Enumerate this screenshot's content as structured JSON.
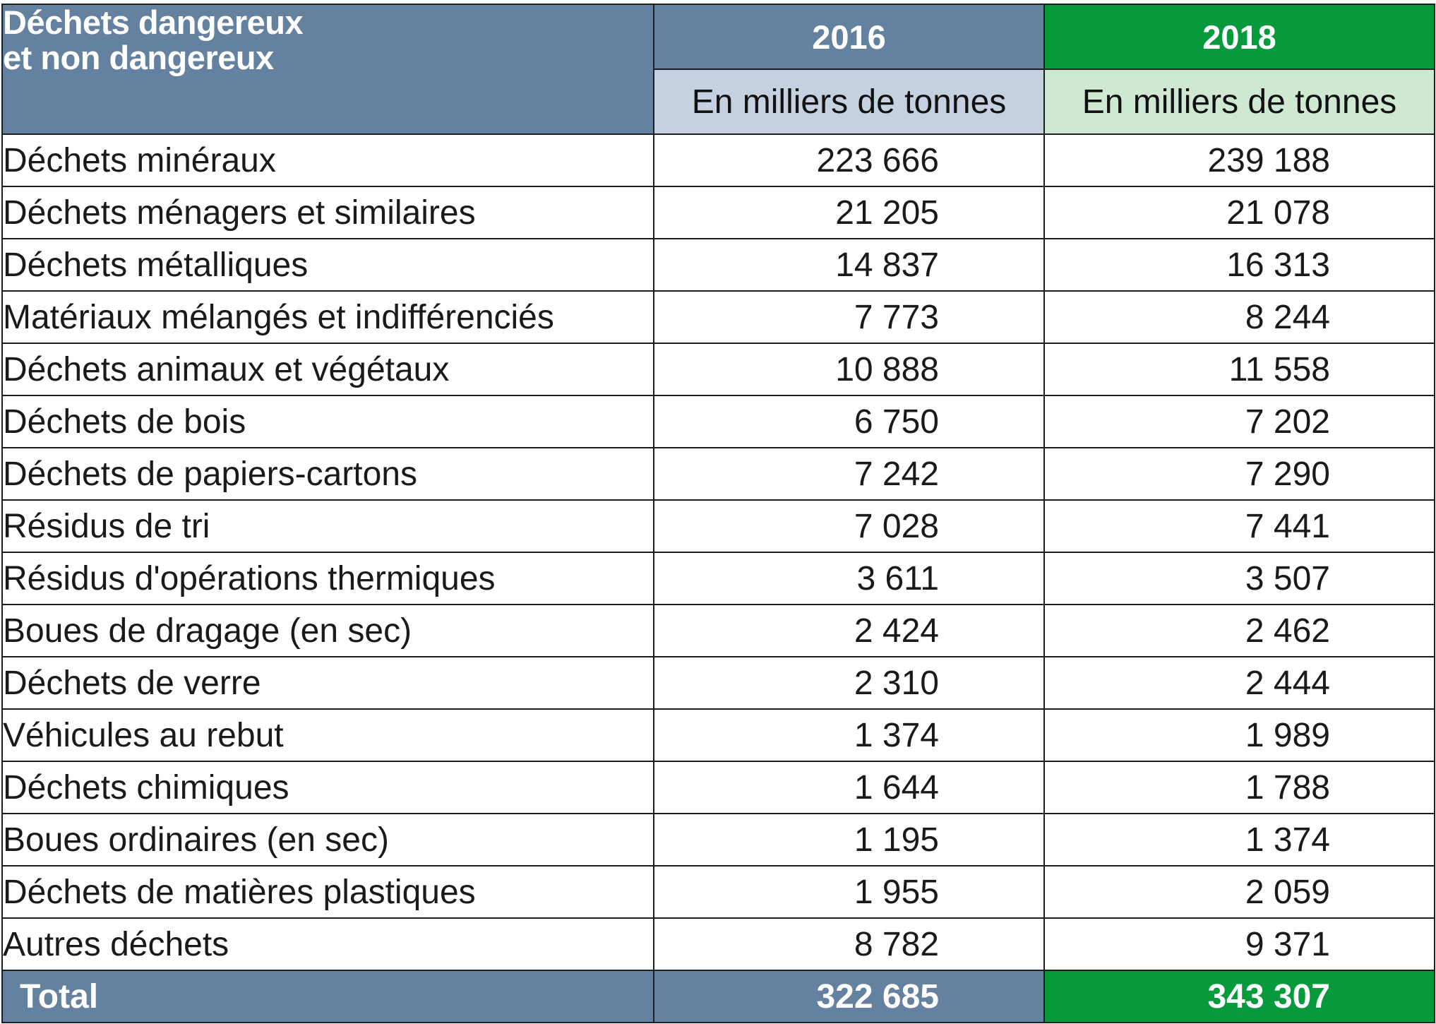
{
  "header": {
    "label_line1": "Déchets dangereux",
    "label_line2": "et non dangereux",
    "year_a": "2016",
    "year_b": "2018",
    "unit_a": "En milliers de tonnes",
    "unit_b": "En milliers de tonnes"
  },
  "rows": [
    {
      "label": "Déchets minéraux",
      "v2016": "223 666",
      "v2018": "239 188"
    },
    {
      "label": "Déchets ménagers et similaires",
      "v2016": "21 205",
      "v2018": "21 078"
    },
    {
      "label": "Déchets métalliques",
      "v2016": "14 837",
      "v2018": "16 313"
    },
    {
      "label": "Matériaux mélangés et indifférenciés",
      "v2016": "7 773",
      "v2018": "8 244"
    },
    {
      "label": "Déchets animaux et végétaux",
      "v2016": "10 888",
      "v2018": "11 558"
    },
    {
      "label": "Déchets de bois",
      "v2016": "6 750",
      "v2018": "7 202"
    },
    {
      "label": "Déchets de papiers-cartons",
      "v2016": "7 242",
      "v2018": "7 290"
    },
    {
      "label": "Résidus de tri",
      "v2016": "7 028",
      "v2018": "7 441"
    },
    {
      "label": "Résidus d'opérations thermiques",
      "v2016": "3 611",
      "v2018": "3 507"
    },
    {
      "label": "Boues de dragage (en sec)",
      "v2016": "2 424",
      "v2018": "2 462"
    },
    {
      "label": "Déchets de verre",
      "v2016": "2 310",
      "v2018": "2 444"
    },
    {
      "label": "Véhicules au rebut",
      "v2016": "1 374",
      "v2018": "1 989"
    },
    {
      "label": "Déchets chimiques",
      "v2016": "1 644",
      "v2018": "1 788"
    },
    {
      "label": "Boues ordinaires (en sec)",
      "v2016": "1 195",
      "v2018": "1 374"
    },
    {
      "label": "Déchets de matières plastiques",
      "v2016": "1 955",
      "v2018": "2 059"
    },
    {
      "label": "Autres déchets",
      "v2016": "8 782",
      "v2018": "9 371"
    }
  ],
  "total": {
    "label": "Total",
    "v2016": "322 685",
    "v2018": "343 307"
  },
  "colors": {
    "header_blue": "#64819f",
    "header_green": "#079a3d",
    "unit_blue": "#c6d1e0",
    "unit_green": "#cfe8d2"
  }
}
